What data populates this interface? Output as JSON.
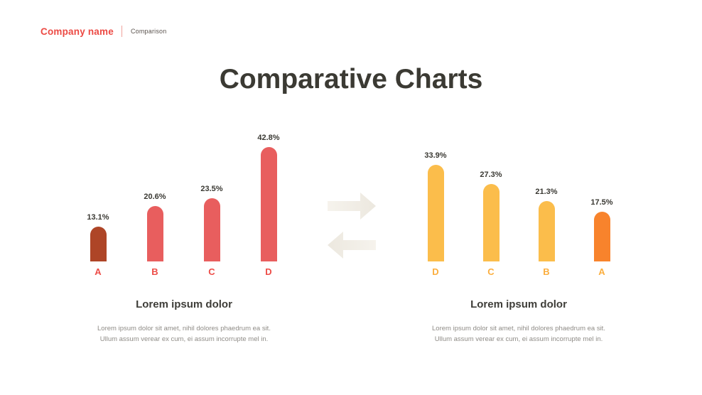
{
  "header": {
    "company": "Company name",
    "section": "Comparison"
  },
  "title": "Comparative Charts",
  "chart_data": [
    {
      "type": "bar",
      "position": "left",
      "categories": [
        "A",
        "B",
        "C",
        "D"
      ],
      "values": [
        13.1,
        20.6,
        23.5,
        42.8
      ],
      "value_labels": [
        "13.1%",
        "20.6%",
        "23.5%",
        "42.8%"
      ],
      "bar_colors": [
        "#AE4527",
        "#E85E5E",
        "#E85E5E",
        "#E85E5E"
      ],
      "category_label_color": "#ED4C47",
      "value_label_color": "#3A3933",
      "ylim": [
        0,
        45
      ],
      "grid": false,
      "legend": false,
      "title": "",
      "xlabel": "",
      "ylabel": ""
    },
    {
      "type": "bar",
      "position": "right",
      "categories": [
        "D",
        "C",
        "B",
        "A"
      ],
      "values": [
        33.9,
        27.3,
        21.3,
        17.5
      ],
      "value_labels": [
        "33.9%",
        "27.3%",
        "21.3%",
        "17.5%"
      ],
      "bar_colors": [
        "#FBBD4B",
        "#FBBD4B",
        "#FBBD4B",
        "#F8832C"
      ],
      "category_label_color": "#FBAE3E",
      "value_label_color": "#3A3933",
      "ylim": [
        0,
        45
      ],
      "grid": false,
      "legend": false,
      "title": "",
      "xlabel": "",
      "ylabel": ""
    }
  ],
  "sections": [
    {
      "heading": "Lorem ipsum dolor",
      "body": [
        "Lorem ipsum dolor sit amet, nihil dolores phaedrum ea sit.",
        "Ullum assum verear ex cum, ei assum incorrupte mel in."
      ]
    },
    {
      "heading": "Lorem ipsum dolor",
      "body": [
        "Lorem ipsum dolor sit amet, nihil dolores phaedrum ea sit.",
        "Ullum assum verear ex cum, ei assum incorrupte mel in."
      ]
    }
  ],
  "icons": {
    "swap_right": "arrow-right",
    "swap_left": "arrow-left"
  },
  "colors": {
    "accent_red": "#EC4A44",
    "brick": "#AE4527",
    "salmon": "#E85E5E",
    "yellow": "#FBBD4B",
    "orange": "#F8832C",
    "title_text": "#3B3A33",
    "body_text": "#8F8C87",
    "arrow_fill_light": "#F5F2EC",
    "arrow_fill_dark": "#ECE8DF"
  }
}
